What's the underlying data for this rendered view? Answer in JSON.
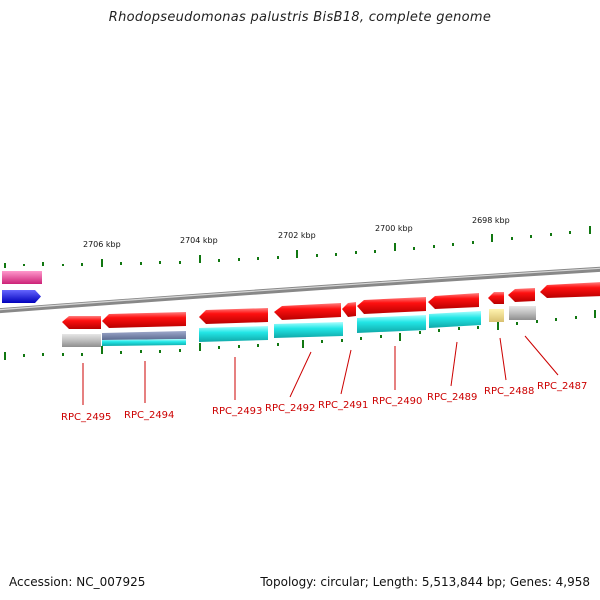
{
  "title": "Rhodopseudomonas palustris BisB18, complete genome",
  "footer": {
    "accession": "Accession: NC_007925",
    "summary": "Topology: circular; Length: 5,513,844 bp; Genes: 4,958"
  },
  "kbp_labels": [
    "2706 kbp",
    "2704 kbp",
    "2702 kbp",
    "2700 kbp",
    "2698 kbp"
  ],
  "gene_labels": [
    "RPC_2495",
    "RPC_2494",
    "RPC_2493",
    "RPC_2492",
    "RPC_2491",
    "RPC_2490",
    "RPC_2489",
    "RPC_2488",
    "RPC_2487"
  ],
  "colors": {
    "gene_arrow": "#ee0000",
    "cds_cyan": "#22dddd",
    "cds_gray": "#b8b8b8",
    "cds_slate": "#6f7fa0",
    "cds_yellow": "#eedd88",
    "left_magenta": "#ee4499",
    "left_blue": "#1111ee",
    "tick_green": "#117711",
    "backbone": "#888888",
    "label_red": "#cc0000"
  }
}
